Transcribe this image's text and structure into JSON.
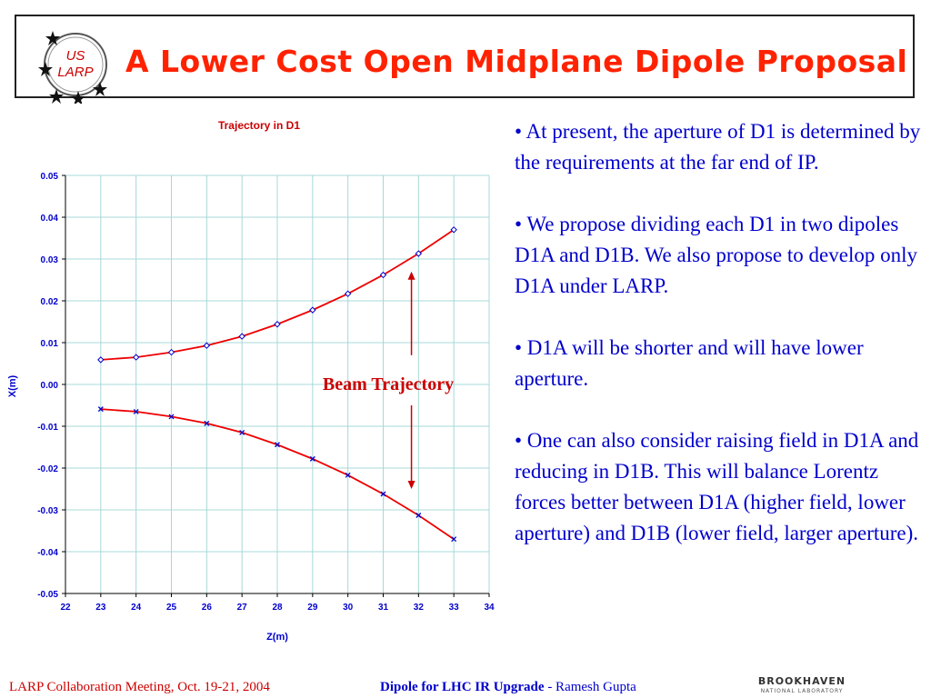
{
  "header": {
    "title": "A Lower Cost Open Midplane Dipole Proposal",
    "logo": {
      "line1": "US",
      "line2": "LARP",
      "icon": "us-larp-logo"
    }
  },
  "chart_data": {
    "type": "line",
    "title": "Trajectory in D1",
    "xlabel": "Z(m)",
    "ylabel": "X(m)",
    "xlim": [
      22,
      34
    ],
    "ylim": [
      -0.05,
      0.05
    ],
    "x_ticks": [
      "22",
      "23",
      "24",
      "25",
      "26",
      "27",
      "28",
      "29",
      "30",
      "31",
      "32",
      "33",
      "34"
    ],
    "y_ticks": [
      "0.05",
      "0.04",
      "0.03",
      "0.02",
      "0.01",
      "0.00",
      "-0.01",
      "-0.02",
      "-0.03",
      "-0.04",
      "-0.05"
    ],
    "grid": true,
    "x": [
      23,
      24,
      25,
      26,
      27,
      28,
      29,
      30,
      31,
      32,
      33
    ],
    "series": [
      {
        "values": [
          0.0059,
          0.0065,
          0.0077,
          0.0093,
          0.0115,
          0.0144,
          0.0178,
          0.0217,
          0.0262,
          0.0313,
          0.037
        ],
        "marker": "diamond",
        "line_color": "#ee0000",
        "marker_color": "#0000cc"
      },
      {
        "values": [
          -0.0059,
          -0.0065,
          -0.0077,
          -0.0093,
          -0.0115,
          -0.0144,
          -0.0178,
          -0.0217,
          -0.0262,
          -0.0313,
          -0.037
        ],
        "marker": "x",
        "line_color": "#ee0000",
        "marker_color": "#0000cc"
      }
    ],
    "annotation": {
      "text": "Beam Trajectory",
      "color": "#cc0000"
    },
    "colors": {
      "title": "#cc0000",
      "axis_label": "#0000cc",
      "grid": "#a8d8d8",
      "axis": "#000000"
    }
  },
  "bullets": [
    "• At present, the aperture of D1 is determined by the requirements at the far end of IP.",
    "• We propose dividing each D1 in two dipoles D1A and D1B. We also propose to develop only D1A under LARP.",
    "• D1A will be shorter and will have lower aperture.",
    "• One can also consider raising field in D1A and reducing in D1B. This will balance Lorentz forces better between D1A (higher field, lower aperture) and D1B (lower field, larger aperture)."
  ],
  "footer": {
    "left": "LARP Collaboration Meeting, Oct. 19-21, 2004",
    "center_bold": "Dipole for LHC IR Upgrade",
    "center_rest": " - Ramesh Gupta",
    "logo_text": "BROOKHAVEN",
    "logo_sub": "NATIONAL LABORATORY",
    "logo_icon": "brookhaven-logo"
  }
}
